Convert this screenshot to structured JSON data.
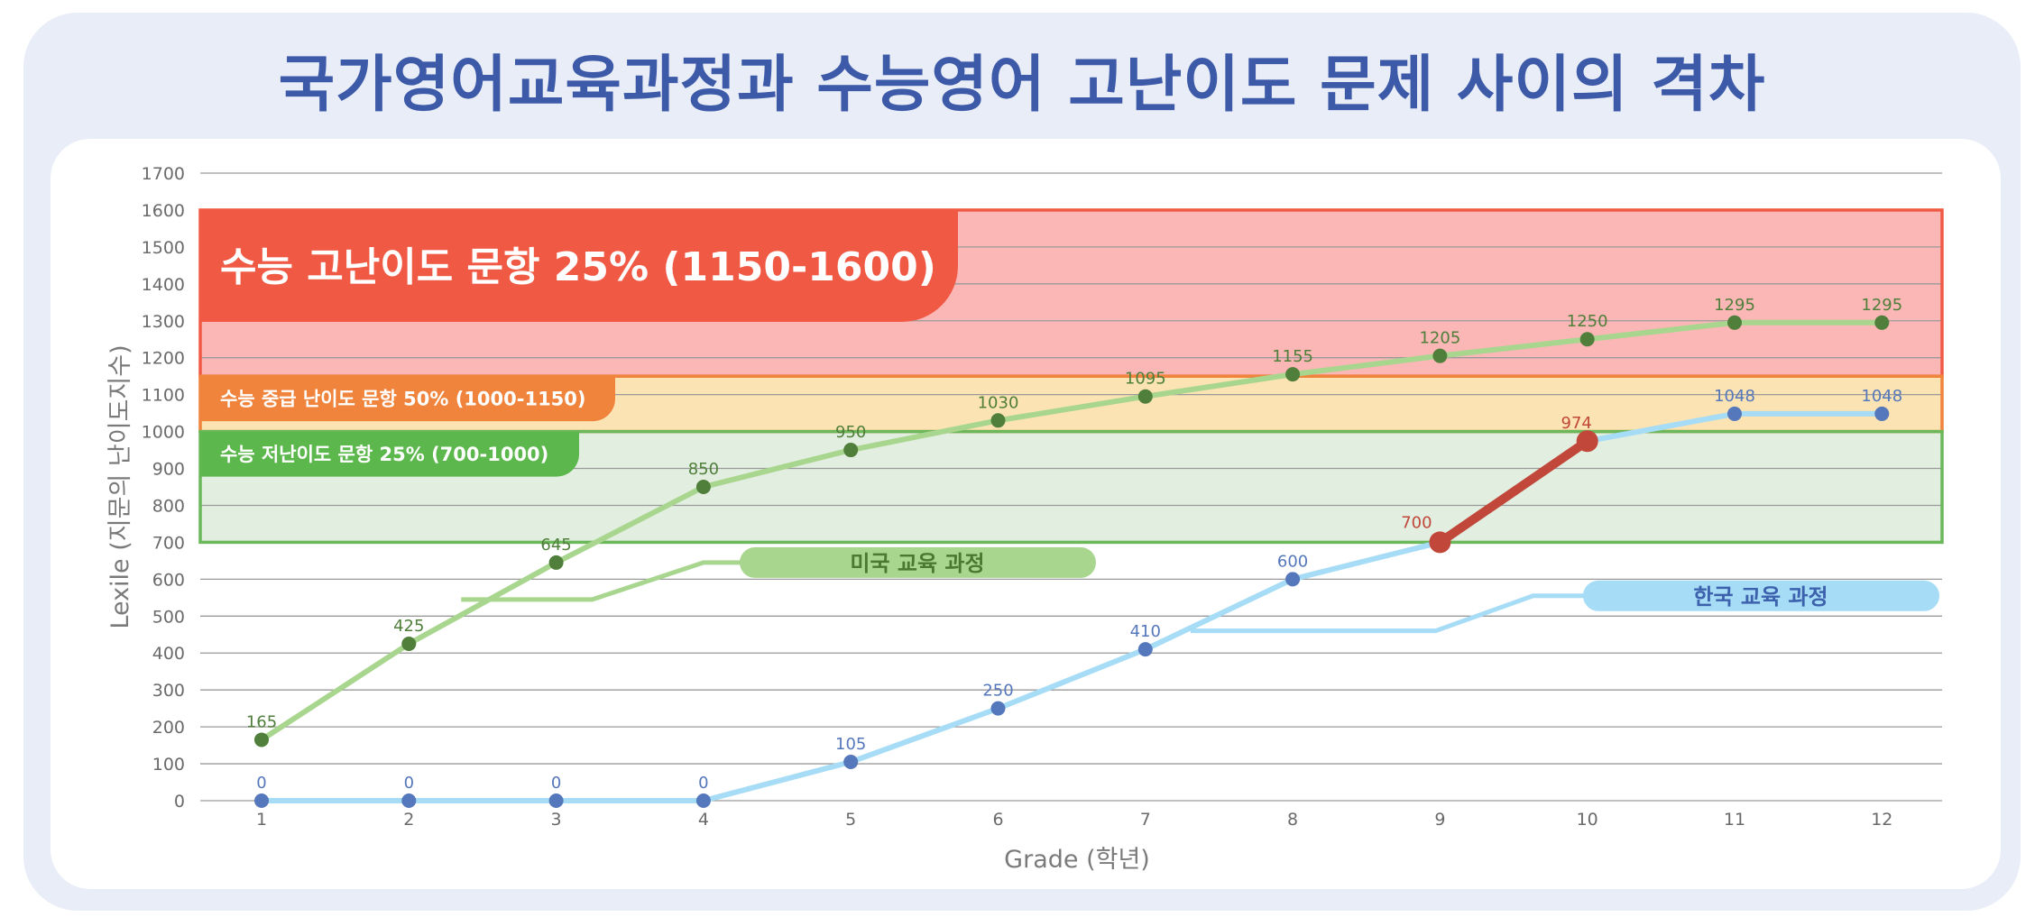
{
  "title": "국가영어교육과정과 수능영어 고난이도 문제 사이의 격차",
  "colors": {
    "us_line": "#a9d68f",
    "us_point": "#4f7f3a",
    "kr_line": "#a6dcf5",
    "kr_point": "#5577bb",
    "kr_gap_line": "#c0473a",
    "hard_band": "#fbb6b6",
    "hard_border": "#f05a45",
    "mid_band": "#fbe3b3",
    "mid_border": "#f0843c",
    "easy_band": "#e2eee0",
    "easy_border": "#6ab85a"
  },
  "chart_data": {
    "type": "line",
    "xlabel": "Grade (학년)",
    "ylabel": "Lexile (지문의 난이도지수)",
    "categories": [
      "1",
      "2",
      "3",
      "4",
      "5",
      "6",
      "7",
      "8",
      "9",
      "10",
      "11",
      "12"
    ],
    "ylim": [
      0,
      1700
    ],
    "yticks": [
      "0",
      "100",
      "200",
      "300",
      "400",
      "500",
      "600",
      "700",
      "800",
      "900",
      "1000",
      "1100",
      "1200",
      "1300",
      "1400",
      "1500",
      "1600",
      "1700"
    ],
    "grid": true,
    "series": [
      {
        "name": "미국 교육 과정",
        "values": [
          165,
          425,
          645,
          850,
          950,
          1030,
          1095,
          1155,
          1205,
          1250,
          1295,
          1295
        ]
      },
      {
        "name": "한국 교육 과정",
        "values": [
          0,
          0,
          0,
          0,
          105,
          250,
          410,
          600,
          700,
          974,
          1048,
          1048
        ]
      }
    ],
    "bands": [
      {
        "label": "수능 고난이도 문항 25% (1150-1600)",
        "from": 1150,
        "to": 1600,
        "level": "hard"
      },
      {
        "label": "수능 중급 난이도 문항 50% (1000-1150)",
        "from": 1000,
        "to": 1150,
        "level": "mid"
      },
      {
        "label": "수능 저난이도 문항 25% (700-1000)",
        "from": 700,
        "to": 1000,
        "level": "easy"
      }
    ]
  }
}
